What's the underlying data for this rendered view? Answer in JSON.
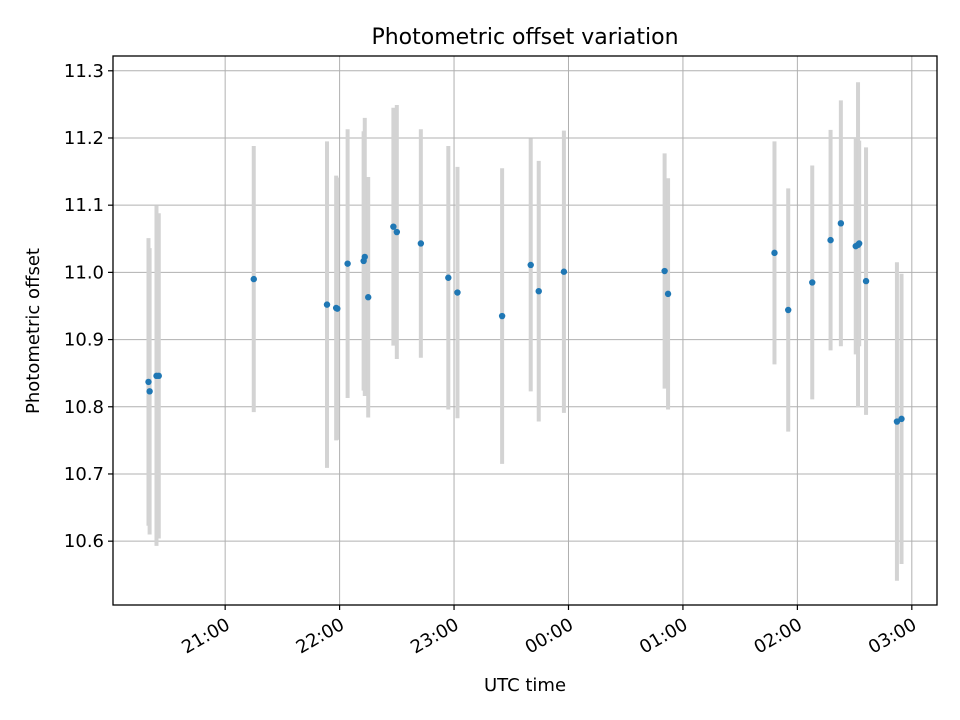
{
  "chart_data": {
    "type": "scatter",
    "title": "Photometric offset variation",
    "xlabel": "UTC time",
    "ylabel": "Photometric offset",
    "x_unit": "UTC time of day (hours, times after midnight carry +24)",
    "xlim": [
      20.02,
      27.22
    ],
    "ylim": [
      10.505,
      11.322
    ],
    "grid": true,
    "colors": {
      "points": "#1f77b4",
      "errorbars": "#d3d3d3",
      "grid": "#b0b0b0"
    },
    "xticks": [
      {
        "value": 21,
        "label": "21:00"
      },
      {
        "value": 22,
        "label": "22:00"
      },
      {
        "value": 23,
        "label": "23:00"
      },
      {
        "value": 24,
        "label": "00:00"
      },
      {
        "value": 25,
        "label": "01:00"
      },
      {
        "value": 26,
        "label": "02:00"
      },
      {
        "value": 27,
        "label": "03:00"
      }
    ],
    "yticks": [
      {
        "value": 10.6,
        "label": "10.6"
      },
      {
        "value": 10.7,
        "label": "10.7"
      },
      {
        "value": 10.8,
        "label": "10.8"
      },
      {
        "value": 10.9,
        "label": "10.9"
      },
      {
        "value": 11.0,
        "label": "11.0"
      },
      {
        "value": 11.1,
        "label": "11.1"
      },
      {
        "value": 11.2,
        "label": "11.2"
      },
      {
        "value": 11.3,
        "label": "11.3"
      }
    ],
    "points": [
      {
        "x": 20.33,
        "y": 10.837,
        "err": 0.214
      },
      {
        "x": 20.34,
        "y": 10.823,
        "err": 0.213
      },
      {
        "x": 20.4,
        "y": 10.846,
        "err": 0.253
      },
      {
        "x": 20.42,
        "y": 10.846,
        "err": 0.242
      },
      {
        "x": 21.25,
        "y": 10.99,
        "err": 0.198
      },
      {
        "x": 21.89,
        "y": 10.952,
        "err": 0.243
      },
      {
        "x": 21.97,
        "y": 10.947,
        "err": 0.197
      },
      {
        "x": 21.98,
        "y": 10.946,
        "err": 0.195
      },
      {
        "x": 22.07,
        "y": 11.013,
        "err": 0.2
      },
      {
        "x": 22.21,
        "y": 11.017,
        "err": 0.193
      },
      {
        "x": 22.22,
        "y": 11.023,
        "err": 0.207
      },
      {
        "x": 22.25,
        "y": 10.963,
        "err": 0.179
      },
      {
        "x": 22.47,
        "y": 11.068,
        "err": 0.177
      },
      {
        "x": 22.5,
        "y": 11.06,
        "err": 0.189
      },
      {
        "x": 22.71,
        "y": 11.043,
        "err": 0.17
      },
      {
        "x": 22.95,
        "y": 10.992,
        "err": 0.196
      },
      {
        "x": 23.03,
        "y": 10.97,
        "err": 0.187
      },
      {
        "x": 23.42,
        "y": 10.935,
        "err": 0.22
      },
      {
        "x": 23.67,
        "y": 11.011,
        "err": 0.188
      },
      {
        "x": 23.74,
        "y": 10.972,
        "err": 0.194
      },
      {
        "x": 23.96,
        "y": 11.001,
        "err": 0.21
      },
      {
        "x": 24.84,
        "y": 11.002,
        "err": 0.175
      },
      {
        "x": 24.87,
        "y": 10.968,
        "err": 0.172
      },
      {
        "x": 25.8,
        "y": 11.029,
        "err": 0.166
      },
      {
        "x": 25.92,
        "y": 10.944,
        "err": 0.181
      },
      {
        "x": 26.13,
        "y": 10.985,
        "err": 0.174
      },
      {
        "x": 26.29,
        "y": 11.048,
        "err": 0.164
      },
      {
        "x": 26.38,
        "y": 11.073,
        "err": 0.183
      },
      {
        "x": 26.51,
        "y": 11.039,
        "err": 0.161
      },
      {
        "x": 26.53,
        "y": 11.041,
        "err": 0.242
      },
      {
        "x": 26.54,
        "y": 11.043,
        "err": 0.153
      },
      {
        "x": 26.6,
        "y": 10.987,
        "err": 0.199
      },
      {
        "x": 26.87,
        "y": 10.778,
        "err": 0.237
      },
      {
        "x": 26.91,
        "y": 10.782,
        "err": 0.216
      }
    ]
  }
}
